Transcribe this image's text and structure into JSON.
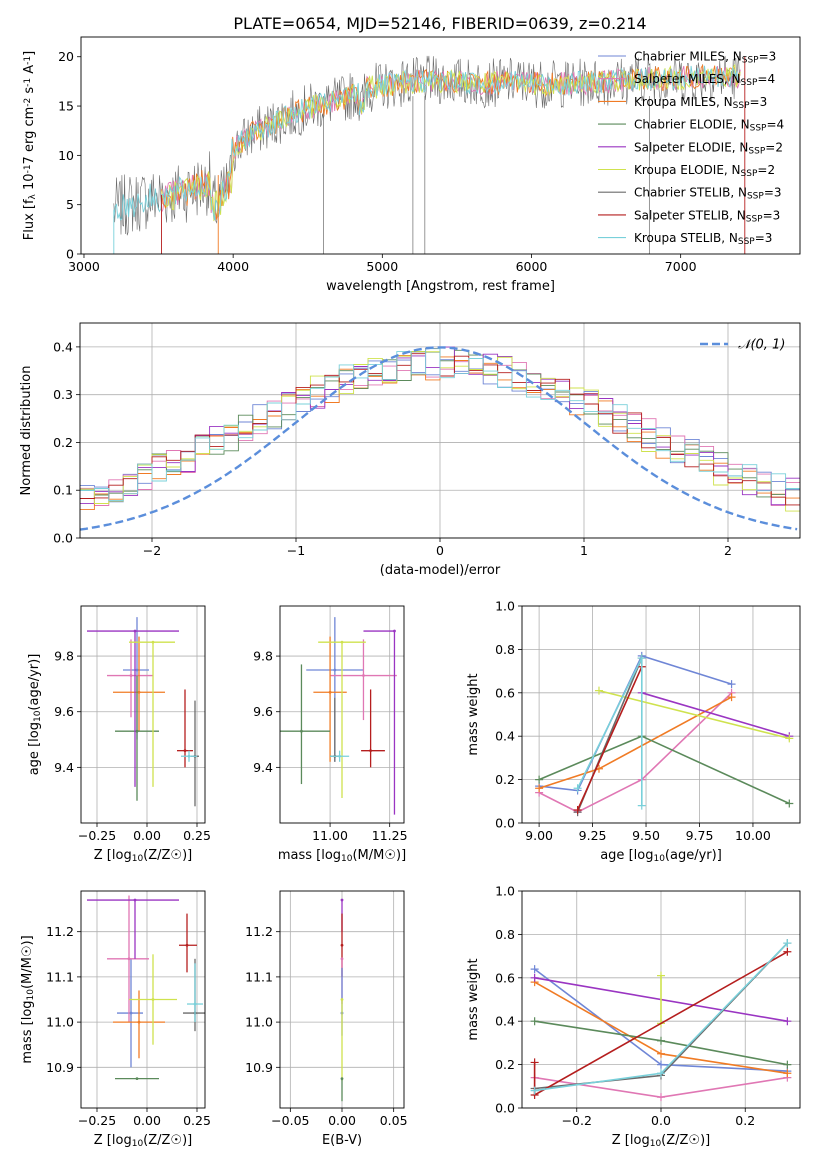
{
  "title": "PLATE=0654, MJD=52146, FIBERID=0639, z=0.214",
  "colors": {
    "Chabrier MILES": "#6f86d6",
    "Salpeter MILES": "#e077b4",
    "Kroupa MILES": "#f07b25",
    "Chabrier ELODIE": "#5b8a5b",
    "Salpeter ELODIE": "#9a35c2",
    "Kroupa ELODIE": "#cfe24e",
    "Chabrier STELIB": "#6b6b6b",
    "Salpeter STELIB": "#b51e1e",
    "Kroupa STELIB": "#79d0da",
    "gauss": "#5b8edb"
  },
  "chart_data": [
    {
      "type": "line",
      "name": "spectrum",
      "xlabel": "wavelength [Angstrom, rest frame]",
      "ylabel": "Flux [f_λ 10^-17 erg cm^-2 s^-1 A^-1]",
      "xlim": [
        2980,
        7800
      ],
      "ylim": [
        0,
        22
      ],
      "xticks": [
        3000,
        4000,
        5000,
        6000,
        7000
      ],
      "yticks": [
        0,
        5,
        10,
        15,
        20
      ],
      "legend_position": "top-right",
      "legend": [
        "Chabrier MILES, N_SSP=3",
        "Salpeter MILES, N_SSP=4",
        "Kroupa MILES, N_SSP=3",
        "Chabrier ELODIE, N_SSP=4",
        "Salpeter ELODIE, N_SSP=2",
        "Kroupa ELODIE, N_SSP=2",
        "Chabrier STELIB, N_SSP=3",
        "Salpeter STELIB, N_SSP=3",
        "Kroupa STELIB, N_SSP=3"
      ],
      "continuum": {
        "x": [
          3200,
          3400,
          3600,
          3800,
          3900,
          4000,
          4100,
          4300,
          4500,
          4700,
          4900,
          5100,
          5300,
          5500,
          5700,
          5900,
          6100,
          6300,
          6500,
          6700,
          6900,
          7100,
          7300,
          7400
        ],
        "y": [
          4.5,
          5.5,
          6.0,
          7.0,
          7.5,
          10.5,
          12.0,
          13.5,
          14.8,
          15.5,
          16.8,
          17.3,
          17.6,
          17.5,
          17.3,
          17.5,
          17.2,
          17.3,
          17.5,
          17.7,
          17.8,
          17.9,
          18.0,
          18.0
        ]
      }
    },
    {
      "type": "line",
      "name": "residuals",
      "xlabel": "(data-model)/error",
      "ylabel": "Normed distribution",
      "xlim": [
        -2.5,
        2.5
      ],
      "ylim": [
        0,
        0.45
      ],
      "xticks": [
        -2,
        -1,
        0,
        1,
        2
      ],
      "yticks": [
        0.0,
        0.1,
        0.2,
        0.3,
        0.4
      ],
      "legend": "𝒩(0, 1)",
      "legend_position": "top-right",
      "bin_width": 0.1
    },
    {
      "type": "scatter",
      "name": "age-vs-Z",
      "xlabel": "Z [log10(Z/Z☉)]",
      "ylabel": "age [log10(age/yr)]",
      "xlim": [
        -0.33,
        0.29
      ],
      "ylim": [
        9.2,
        9.98
      ],
      "xticks": [
        -0.25,
        0.0,
        0.25
      ],
      "yticks": [
        9.4,
        9.6,
        9.8
      ],
      "points": [
        {
          "model": "Chabrier MILES",
          "x": -0.05,
          "xerr": [
            0.07,
            0.06
          ],
          "y": 9.75,
          "yerr": [
            0.25,
            0.19
          ]
        },
        {
          "model": "Salpeter MILES",
          "x": -0.08,
          "xerr": [
            0.12,
            0.11
          ],
          "y": 9.73,
          "yerr": [
            0.15,
            0.13
          ]
        },
        {
          "model": "Kroupa MILES",
          "x": -0.04,
          "xerr": [
            0.13,
            0.13
          ],
          "y": 9.67,
          "yerr": [
            0.14,
            0.2
          ]
        },
        {
          "model": "Chabrier ELODIE",
          "x": -0.05,
          "xerr": [
            0.11,
            0.11
          ],
          "y": 9.53,
          "yerr": [
            0.25,
            0.2
          ]
        },
        {
          "model": "Salpeter ELODIE",
          "x": -0.06,
          "xerr": [
            0.24,
            0.22
          ],
          "y": 9.89,
          "yerr": [
            0.56,
            0.0
          ]
        },
        {
          "model": "Kroupa ELODIE",
          "x": 0.03,
          "xerr": [
            0.12,
            0.11
          ],
          "y": 9.85,
          "yerr": [
            0.52,
            0.0
          ]
        },
        {
          "model": "Chabrier STELIB",
          "x": 0.24,
          "xerr": [
            0.02,
            0.02
          ],
          "y": 9.44,
          "yerr": [
            0.18,
            0.2
          ]
        },
        {
          "model": "Salpeter STELIB",
          "x": 0.19,
          "xerr": [
            0.04,
            0.04
          ],
          "y": 9.46,
          "yerr": [
            0.06,
            0.22
          ]
        },
        {
          "model": "Kroupa STELIB",
          "x": 0.21,
          "xerr": [
            0.04,
            0.04
          ],
          "y": 9.44,
          "yerr": [
            0.02,
            0.02
          ]
        }
      ]
    },
    {
      "type": "scatter",
      "name": "age-vs-mass",
      "xlabel": "mass [log10(M/M☉)]",
      "ylabel": "",
      "xlim": [
        10.79,
        11.31
      ],
      "ylim": [
        9.2,
        9.98
      ],
      "xticks": [
        11.0,
        11.25
      ],
      "yticks": [
        9.4,
        9.6,
        9.8
      ],
      "points": [
        {
          "model": "Chabrier MILES",
          "x": 11.02,
          "xerr": [
            0.12,
            0.12
          ],
          "y": 9.75,
          "yerr": [
            0.33,
            0.19
          ]
        },
        {
          "model": "Salpeter MILES",
          "x": 11.14,
          "xerr": [
            0.14,
            0.14
          ],
          "y": 9.73,
          "yerr": [
            0.16,
            0.13
          ]
        },
        {
          "model": "Kroupa MILES",
          "x": 11.0,
          "xerr": [
            0.07,
            0.07
          ],
          "y": 9.67,
          "yerr": [
            0.25,
            0.2
          ]
        },
        {
          "model": "Chabrier ELODIE",
          "x": 10.88,
          "xerr": [
            0.1,
            0.12
          ],
          "y": 9.53,
          "yerr": [
            0.19,
            0.24
          ]
        },
        {
          "model": "Salpeter ELODIE",
          "x": 11.27,
          "xerr": [
            0.13,
            0.0
          ],
          "y": 9.89,
          "yerr": [
            0.66,
            0.0
          ]
        },
        {
          "model": "Kroupa ELODIE",
          "x": 11.05,
          "xerr": [
            0.1,
            0.1
          ],
          "y": 9.85,
          "yerr": [
            0.56,
            0.0
          ]
        },
        {
          "model": "Chabrier STELIB",
          "x": 11.02,
          "xerr": [
            0.02,
            0.02
          ],
          "y": 9.44,
          "yerr": [
            0.02,
            0.21
          ]
        },
        {
          "model": "Salpeter STELIB",
          "x": 11.17,
          "xerr": [
            0.04,
            0.06
          ],
          "y": 9.46,
          "yerr": [
            0.06,
            0.22
          ]
        },
        {
          "model": "Kroupa STELIB",
          "x": 11.04,
          "xerr": [
            0.04,
            0.04
          ],
          "y": 9.44,
          "yerr": [
            0.02,
            0.02
          ]
        }
      ]
    },
    {
      "type": "line",
      "name": "weight-vs-age",
      "xlabel": "age [log10(age/yr)]",
      "ylabel": "mass weight",
      "xlim": [
        8.92,
        10.22
      ],
      "ylim": [
        0,
        1
      ],
      "xticks": [
        9.0,
        9.25,
        9.5,
        9.75,
        10.0
      ],
      "yticks": [
        0.0,
        0.2,
        0.4,
        0.6,
        0.8,
        1.0
      ],
      "series": [
        {
          "model": "Chabrier MILES",
          "x": [
            9.0,
            9.18,
            9.48,
            9.9
          ],
          "y": [
            0.17,
            0.15,
            0.77,
            0.64
          ]
        },
        {
          "model": "Salpeter MILES",
          "x": [
            9.0,
            9.18,
            9.48,
            9.9
          ],
          "y": [
            0.14,
            0.05,
            0.2,
            0.6
          ]
        },
        {
          "model": "Kroupa MILES",
          "x": [
            9.0,
            9.28,
            9.9
          ],
          "y": [
            0.16,
            0.25,
            0.58
          ]
        },
        {
          "model": "Chabrier ELODIE",
          "x": [
            9.0,
            9.48,
            10.17
          ],
          "y": [
            0.2,
            0.4,
            0.09
          ]
        },
        {
          "model": "Salpeter ELODIE",
          "x": [
            9.48,
            10.17
          ],
          "y": [
            0.6,
            0.4
          ]
        },
        {
          "model": "Kroupa ELODIE",
          "x": [
            9.28,
            10.17
          ],
          "y": [
            0.61,
            0.39
          ]
        },
        {
          "model": "Chabrier STELIB",
          "x": [
            9.18,
            9.48
          ],
          "y": [
            0.05,
            0.76
          ]
        },
        {
          "model": "Salpeter STELIB",
          "x": [
            9.18,
            9.48
          ],
          "y": [
            0.06,
            0.72
          ]
        },
        {
          "model": "Kroupa STELIB",
          "x": [
            9.18,
            9.48,
            9.48
          ],
          "y": [
            0.16,
            0.76,
            0.08
          ]
        }
      ]
    },
    {
      "type": "scatter",
      "name": "mass-vs-Z",
      "xlabel": "Z [log10(Z/Z☉)]",
      "ylabel": "mass [log10(M/M☉)]",
      "xlim": [
        -0.33,
        0.29
      ],
      "ylim": [
        10.81,
        11.29
      ],
      "xticks": [
        -0.25,
        0.0,
        0.25
      ],
      "yticks": [
        10.9,
        11.0,
        11.1,
        11.2
      ],
      "points": [
        {
          "model": "Chabrier MILES",
          "x": -0.08,
          "xerr": [
            0.07,
            0.06
          ],
          "y": 11.02,
          "yerr": [
            0.12,
            0.12
          ]
        },
        {
          "model": "Salpeter MILES",
          "x": -0.09,
          "xerr": [
            0.11,
            0.1
          ],
          "y": 11.14,
          "yerr": [
            0.14,
            0.14
          ]
        },
        {
          "model": "Kroupa MILES",
          "x": -0.04,
          "xerr": [
            0.13,
            0.13
          ],
          "y": 11.0,
          "yerr": [
            0.08,
            0.07
          ]
        },
        {
          "model": "Chabrier ELODIE",
          "x": -0.05,
          "xerr": [
            0.11,
            0.11
          ],
          "y": 10.875,
          "yerr": [
            0.0,
            0.0
          ]
        },
        {
          "model": "Salpeter ELODIE",
          "x": -0.06,
          "xerr": [
            0.24,
            0.22
          ],
          "y": 11.27,
          "yerr": [
            0.13,
            0.0
          ]
        },
        {
          "model": "Kroupa ELODIE",
          "x": 0.03,
          "xerr": [
            0.12,
            0.12
          ],
          "y": 11.05,
          "yerr": [
            0.1,
            0.1
          ]
        },
        {
          "model": "Chabrier STELIB",
          "x": 0.24,
          "xerr": [
            0.06,
            0.06
          ],
          "y": 11.02,
          "yerr": [
            0.04,
            0.12
          ]
        },
        {
          "model": "Salpeter STELIB",
          "x": 0.2,
          "xerr": [
            0.04,
            0.05
          ],
          "y": 11.17,
          "yerr": [
            0.06,
            0.07
          ]
        },
        {
          "model": "Kroupa STELIB",
          "x": 0.24,
          "xerr": [
            0.04,
            0.04
          ],
          "y": 11.04,
          "yerr": [
            0.04,
            0.09
          ]
        }
      ]
    },
    {
      "type": "scatter",
      "name": "mass-vs-EBV",
      "xlabel": "E(B-V)",
      "ylabel": "",
      "xlim": [
        -0.06,
        0.06
      ],
      "ylim": [
        10.81,
        11.29
      ],
      "xticks": [
        -0.05,
        0.0,
        0.05
      ],
      "yticks": [
        10.9,
        11.0,
        11.1,
        11.2
      ],
      "points": [
        {
          "model": "Salpeter ELODIE",
          "x": 0.0,
          "y": 11.27,
          "yerr": [
            0.07,
            0.0
          ]
        },
        {
          "model": "Salpeter STELIB",
          "x": 0.0,
          "y": 11.17,
          "yerr": [
            0.07,
            0.07
          ]
        },
        {
          "model": "Salpeter MILES",
          "x": 0.0,
          "y": 11.14,
          "yerr": [
            0.1,
            0.0
          ]
        },
        {
          "model": "Chabrier MILES",
          "x": 0.0,
          "y": 11.02,
          "yerr": [
            0.05,
            0.1
          ]
        },
        {
          "model": "Kroupa ELODIE",
          "x": 0.0,
          "y": 11.05,
          "yerr": [
            0.18,
            0.0
          ]
        },
        {
          "model": "Chabrier ELODIE",
          "x": 0.0,
          "y": 10.875,
          "yerr": [
            0.05,
            0.0
          ]
        }
      ]
    },
    {
      "type": "line",
      "name": "weight-vs-Z",
      "xlabel": "Z [log10(Z/Z☉)]",
      "ylabel": "mass weight",
      "xlim": [
        -0.33,
        0.33
      ],
      "ylim": [
        0,
        1
      ],
      "xticks": [
        -0.2,
        0.0,
        0.2
      ],
      "yticks": [
        0.0,
        0.2,
        0.4,
        0.6,
        0.8,
        1.0
      ],
      "series": [
        {
          "model": "Chabrier MILES",
          "x": [
            -0.3,
            0.0,
            0.3
          ],
          "y": [
            0.64,
            0.2,
            0.17
          ]
        },
        {
          "model": "Salpeter MILES",
          "x": [
            -0.3,
            0.0,
            0.3
          ],
          "y": [
            0.14,
            0.05,
            0.14
          ]
        },
        {
          "model": "Kroupa MILES",
          "x": [
            -0.3,
            0.0,
            0.3
          ],
          "y": [
            0.58,
            0.25,
            0.16
          ]
        },
        {
          "model": "Chabrier ELODIE",
          "x": [
            -0.3,
            0.0,
            0.3
          ],
          "y": [
            0.4,
            0.31,
            0.2
          ]
        },
        {
          "model": "Salpeter ELODIE",
          "x": [
            -0.3,
            0.3
          ],
          "y": [
            0.6,
            0.4
          ]
        },
        {
          "model": "Kroupa ELODIE",
          "x": [
            0.0,
            0.0
          ],
          "y": [
            0.61,
            0.39
          ]
        },
        {
          "model": "Chabrier STELIB",
          "x": [
            -0.3,
            0.0,
            0.3
          ],
          "y": [
            0.09,
            0.15,
            0.76
          ]
        },
        {
          "model": "Salpeter STELIB",
          "x": [
            -0.3,
            -0.3,
            0.3
          ],
          "y": [
            0.21,
            0.06,
            0.72
          ]
        },
        {
          "model": "Kroupa STELIB",
          "x": [
            -0.3,
            0.0,
            0.3
          ],
          "y": [
            0.08,
            0.16,
            0.76
          ]
        }
      ]
    }
  ]
}
